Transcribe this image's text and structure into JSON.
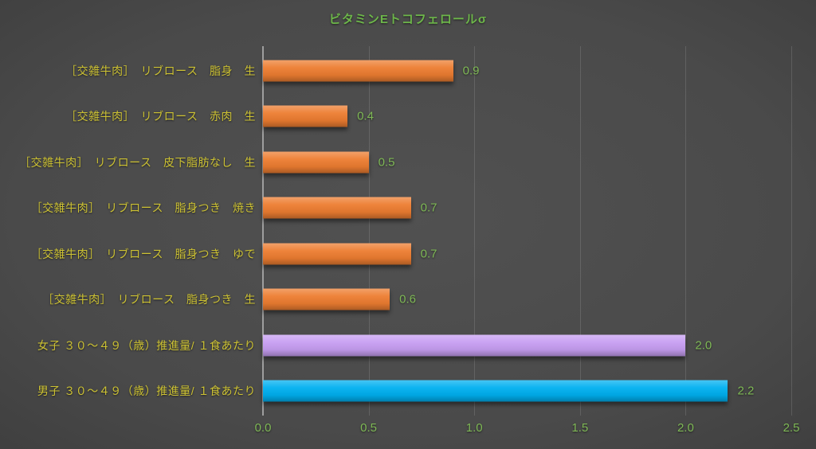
{
  "title": "ビタミンEトコフェロールσ",
  "colors": {
    "title_text": "#6db64a",
    "category_label_text": "#cdc233",
    "value_label_text": "#7fb956",
    "tick_label_text": "#7fb956",
    "axis_line": "#9e9e9e",
    "bar_orange": "#ed7d31",
    "bar_purple": "#c79ef2",
    "bar_blue": "#00b0f0"
  },
  "chart_data": {
    "type": "bar",
    "orientation": "horizontal",
    "title": "ビタミンEトコフェロールσ",
    "categories": [
      "［交雑牛肉］　リブロース　脂身　生",
      "［交雑牛肉］　リブロース　赤肉　生",
      "［交雑牛肉］　リブロース　皮下脂肪なし　生",
      "［交雑牛肉］　リブロース　脂身つき　焼き",
      "［交雑牛肉］　リブロース　脂身つき　ゆで",
      "［交雑牛肉］　リブロース　脂身つき　生",
      "女子 ３０～４９（歳）推進量/ １食あたり",
      "男子 ３０～４９（歳）推進量/ １食あたり"
    ],
    "values": [
      0.9,
      0.4,
      0.5,
      0.7,
      0.7,
      0.6,
      2.0,
      2.2
    ],
    "value_labels": [
      "0.9",
      "0.4",
      "0.5",
      "0.7",
      "0.7",
      "0.6",
      "2.0",
      "2.2"
    ],
    "bar_colors": [
      "#ed7d31",
      "#ed7d31",
      "#ed7d31",
      "#ed7d31",
      "#ed7d31",
      "#ed7d31",
      "#c79ef2",
      "#00b0f0"
    ],
    "xlabel": "",
    "ylabel": "",
    "xlim": [
      0,
      2.5
    ],
    "xticks": [
      "0.0",
      "0.5",
      "1.0",
      "1.5",
      "2.0",
      "2.5"
    ],
    "grid": true,
    "legend": false
  }
}
